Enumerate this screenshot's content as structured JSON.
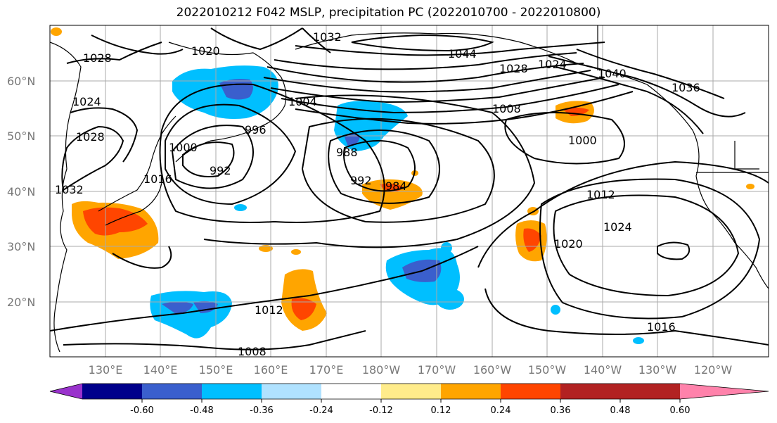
{
  "title": "2022010212 F042 MSLP, precipitation PC (2022010700 - 2022010800)",
  "lat_labels": [
    "60°N",
    "50°N",
    "40°N",
    "30°N",
    "20°N"
  ],
  "lon_labels": [
    "130°E",
    "140°E",
    "150°E",
    "160°E",
    "170°E",
    "180°W",
    "170°W",
    "160°W",
    "150°W",
    "140°W",
    "130°W",
    "120°W"
  ],
  "isobar_labels": [
    "1028",
    "1024",
    "1020",
    "1032",
    "1044",
    "1028",
    "1024",
    "1040",
    "1036",
    "1004",
    "1008",
    "996",
    "1000",
    "992",
    "1016",
    "1028",
    "1032",
    "988",
    "984",
    "992",
    "1000",
    "1012",
    "1024",
    "1020",
    "1012",
    "1008",
    "1016"
  ],
  "colorbar": {
    "colors": [
      "#9932CC",
      "#00008B",
      "#3A5FCD",
      "#00BFFF",
      "#B0E2FF",
      "#FFFFFF",
      "#FFEC8B",
      "#FFA500",
      "#FF4500",
      "#B22222",
      "#FF82AB"
    ],
    "tick_labels": [
      "-0.60",
      "-0.48",
      "-0.36",
      "-0.24",
      "-0.12",
      "0.12",
      "0.24",
      "0.36",
      "0.48",
      "0.60"
    ]
  }
}
